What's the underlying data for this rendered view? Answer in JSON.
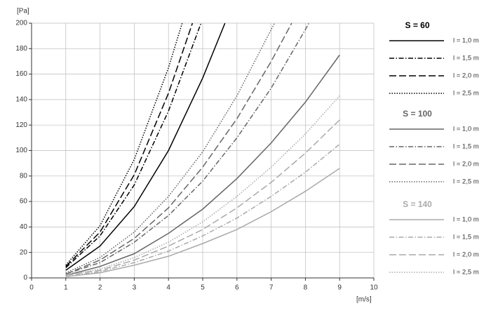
{
  "chart_data": {
    "type": "line",
    "y_label": "[Pa]",
    "x_label": "[m/s]",
    "xlim": [
      0,
      10
    ],
    "xticks": [
      0,
      1,
      2,
      3,
      4,
      5,
      6,
      7,
      8,
      9,
      10
    ],
    "ylim": [
      0,
      200
    ],
    "yticks": [
      0,
      20,
      40,
      60,
      80,
      100,
      120,
      140,
      160,
      180,
      200
    ],
    "grid": true,
    "series": [
      {
        "group": "S = 60",
        "name": "l = 1,0 m",
        "color": "#000000",
        "line_style": "solid",
        "x": [
          1,
          2,
          3,
          4,
          5,
          5.65
        ],
        "values": [
          6,
          25,
          56,
          100,
          157,
          200
        ]
      },
      {
        "group": "S = 60",
        "name": "l = 1,5 m",
        "color": "#000000",
        "line_style": "dashdot",
        "x": [
          1,
          2,
          3,
          4,
          4.95
        ],
        "values": [
          8,
          33,
          73,
          131,
          200
        ]
      },
      {
        "group": "S = 60",
        "name": "l = 2,0 m",
        "color": "#000000",
        "line_style": "dashed",
        "x": [
          1,
          2,
          3,
          4,
          4.7
        ],
        "values": [
          9,
          36,
          81,
          145,
          200
        ]
      },
      {
        "group": "S = 60",
        "name": "l = 2,5 m",
        "color": "#000000",
        "line_style": "dotted",
        "x": [
          1,
          2,
          3,
          4,
          4.4
        ],
        "values": [
          10,
          41,
          93,
          165,
          200
        ]
      },
      {
        "group": "S = 100",
        "name": "l = 1,0 m",
        "color": "#666666",
        "line_style": "solid",
        "x": [
          1,
          2,
          3,
          4,
          5,
          6,
          7,
          8,
          9
        ],
        "values": [
          2,
          9,
          19,
          35,
          54,
          78,
          106,
          138,
          175
        ]
      },
      {
        "group": "S = 100",
        "name": "l = 1,5 m",
        "color": "#666666",
        "line_style": "dashdot",
        "x": [
          1,
          2,
          3,
          4,
          5,
          6,
          7,
          8,
          8.1
        ],
        "values": [
          3,
          12,
          28,
          49,
          76,
          110,
          149,
          195,
          200
        ]
      },
      {
        "group": "S = 100",
        "name": "l = 2,0 m",
        "color": "#666666",
        "line_style": "dashed",
        "x": [
          1,
          2,
          3,
          4,
          5,
          6,
          7,
          7.6
        ],
        "values": [
          3,
          14,
          31,
          55,
          87,
          125,
          170,
          200
        ]
      },
      {
        "group": "S = 100",
        "name": "l = 2,5 m",
        "color": "#666666",
        "line_style": "dotted",
        "x": [
          1,
          2,
          3,
          4,
          5,
          6,
          7,
          7.1
        ],
        "values": [
          4,
          16,
          36,
          64,
          99,
          143,
          195,
          200
        ]
      },
      {
        "group": "S = 140",
        "name": "l = 1,0 m",
        "color": "#aaaaaa",
        "line_style": "solid",
        "x": [
          1,
          2,
          3,
          4,
          5,
          6,
          7,
          8,
          9
        ],
        "values": [
          1,
          4,
          10,
          17,
          27,
          38,
          52,
          68,
          86
        ]
      },
      {
        "group": "S = 140",
        "name": "l = 1,5 m",
        "color": "#aaaaaa",
        "line_style": "dashdot",
        "x": [
          1,
          2,
          3,
          4,
          5,
          6,
          7,
          8,
          9
        ],
        "values": [
          1,
          5,
          12,
          21,
          33,
          47,
          64,
          83,
          105
        ]
      },
      {
        "group": "S = 140",
        "name": "l = 2,0 m",
        "color": "#aaaaaa",
        "line_style": "dashed",
        "x": [
          1,
          2,
          3,
          4,
          5,
          6,
          7,
          8,
          9
        ],
        "values": [
          2,
          6,
          14,
          25,
          38,
          55,
          75,
          98,
          124
        ]
      },
      {
        "group": "S = 140",
        "name": "l = 2,5 m",
        "color": "#aaaaaa",
        "line_style": "dotted",
        "x": [
          1,
          2,
          3,
          4,
          5,
          6,
          7,
          8,
          9
        ],
        "values": [
          2,
          7,
          16,
          28,
          44,
          64,
          87,
          113,
          143
        ]
      }
    ]
  }
}
